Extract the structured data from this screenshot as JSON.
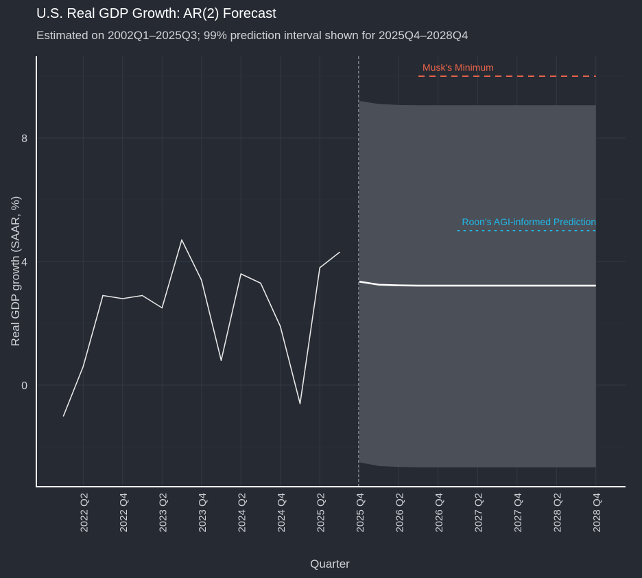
{
  "chart_data": {
    "type": "line",
    "title": "U.S. Real GDP Growth: AR(2) Forecast",
    "subtitle": "Estimated on 2002Q1–2025Q3; 99% prediction interval shown for 2025Q4–2028Q4",
    "xlabel": "Quarter",
    "ylabel": "Real GDP growth (SAAR, %)",
    "ylim": [
      -3.3,
      10.6
    ],
    "y_ticks": [
      0,
      4,
      8
    ],
    "x_ticks": [
      "2022 Q2",
      "2022 Q4",
      "2023 Q2",
      "2023 Q4",
      "2024 Q2",
      "2024 Q4",
      "2025 Q2",
      "2025 Q4",
      "2026 Q2",
      "2026 Q4",
      "2027 Q2",
      "2027 Q4",
      "2028 Q2",
      "2028 Q4"
    ],
    "grid": true,
    "actual": {
      "x": [
        "2022 Q1",
        "2022 Q2",
        "2022 Q3",
        "2022 Q4",
        "2023 Q1",
        "2023 Q2",
        "2023 Q3",
        "2023 Q4",
        "2024 Q1",
        "2024 Q2",
        "2024 Q3",
        "2024 Q4",
        "2025 Q1",
        "2025 Q2",
        "2025 Q3"
      ],
      "y": [
        -1.0,
        0.6,
        2.9,
        2.8,
        2.9,
        2.5,
        4.7,
        3.4,
        0.8,
        3.6,
        3.3,
        1.9,
        -0.6,
        3.8,
        4.3
      ]
    },
    "forecast": {
      "x": [
        "2025 Q4",
        "2026 Q1",
        "2026 Q2",
        "2026 Q3",
        "2026 Q4",
        "2027 Q1",
        "2027 Q2",
        "2027 Q3",
        "2027 Q4",
        "2028 Q1",
        "2028 Q2",
        "2028 Q3",
        "2028 Q4"
      ],
      "y": [
        3.35,
        3.25,
        3.23,
        3.22,
        3.22,
        3.22,
        3.22,
        3.22,
        3.22,
        3.22,
        3.22,
        3.22,
        3.22
      ],
      "lower": [
        -2.5,
        -2.62,
        -2.65,
        -2.66,
        -2.66,
        -2.66,
        -2.66,
        -2.66,
        -2.66,
        -2.66,
        -2.66,
        -2.66,
        -2.66
      ],
      "upper": [
        9.2,
        9.1,
        9.07,
        9.06,
        9.06,
        9.06,
        9.06,
        9.06,
        9.06,
        9.06,
        9.06,
        9.06,
        9.06
      ]
    },
    "forecast_start": "2025 Q4",
    "reference_lines": [
      {
        "label": "Musk's Minimum",
        "y": 10.0,
        "x_start": "2026 Q3",
        "x_end": "2028 Q4",
        "style": "dashed",
        "color": "#e8644a"
      },
      {
        "label": "Roon's AGI-informed Prediction",
        "y": 5.0,
        "x_start": "2027 Q1",
        "x_end": "2028 Q4",
        "style": "dotted",
        "color": "#1fb8e8"
      }
    ],
    "colors": {
      "background": "#252a33",
      "actual_line": "#e6e6e6",
      "forecast_line": "#ffffff",
      "interval_fill": "#4b4f57",
      "grid": "#343943",
      "axis": "#ffffff",
      "text": "#cfd1d5"
    }
  }
}
